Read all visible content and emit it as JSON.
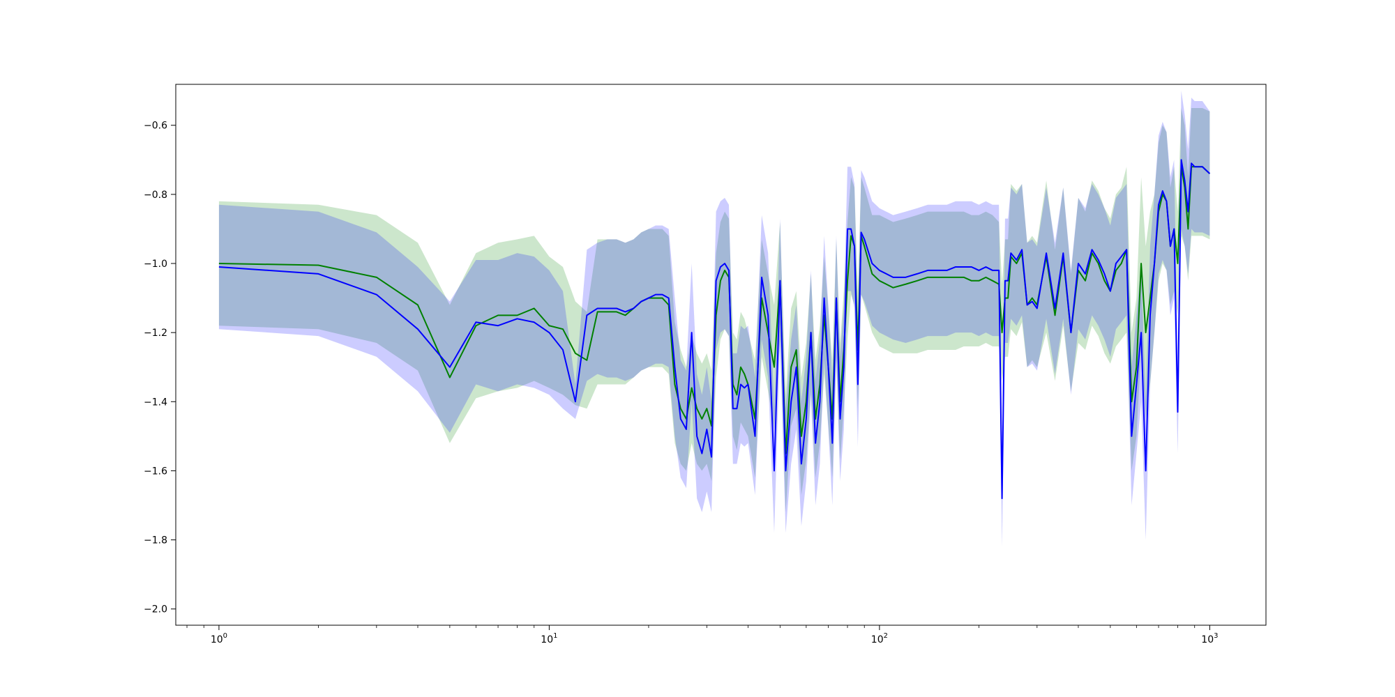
{
  "chart_data": {
    "type": "line",
    "title": "",
    "xlabel": "",
    "ylabel": "",
    "x_scale": "log",
    "xlim": [
      0.74,
      1480
    ],
    "ylim": [
      -2.047,
      -0.4815
    ],
    "grid": false,
    "x_ticks": [
      {
        "value": 1,
        "base": "10",
        "exp": "0"
      },
      {
        "value": 10,
        "base": "10",
        "exp": "1"
      },
      {
        "value": 100,
        "base": "10",
        "exp": "2"
      },
      {
        "value": 1000,
        "base": "10",
        "exp": "3"
      }
    ],
    "y_ticks": [
      {
        "value": -0.6,
        "label": "−0.6"
      },
      {
        "value": -0.8,
        "label": "−0.8"
      },
      {
        "value": -1.0,
        "label": "−1.0"
      },
      {
        "value": -1.2,
        "label": "−1.2"
      },
      {
        "value": -1.4,
        "label": "−1.4"
      },
      {
        "value": -1.6,
        "label": "−1.6"
      },
      {
        "value": -1.8,
        "label": "−1.8"
      },
      {
        "value": -2.0,
        "label": "−2.0"
      }
    ],
    "series": [
      {
        "color": "#008000",
        "band_color": "#008000",
        "x": [
          1,
          2,
          3,
          4,
          5,
          6,
          7,
          8,
          9,
          10,
          11,
          12,
          13,
          14,
          15,
          16,
          17,
          18,
          19,
          20,
          21,
          22,
          23,
          24,
          25,
          26,
          27,
          28,
          29,
          30,
          31,
          32,
          33,
          34,
          35,
          36,
          37,
          38,
          39,
          40,
          42,
          44,
          46,
          48,
          50,
          52,
          54,
          56,
          58,
          60,
          62,
          64,
          66,
          68,
          70,
          72,
          74,
          76,
          78,
          80,
          82,
          84,
          86,
          88,
          90,
          95,
          100,
          110,
          120,
          130,
          140,
          150,
          160,
          170,
          180,
          190,
          200,
          210,
          220,
          230,
          235,
          240,
          245,
          250,
          260,
          270,
          280,
          290,
          300,
          320,
          340,
          360,
          380,
          400,
          420,
          440,
          460,
          480,
          500,
          520,
          540,
          560,
          580,
          600,
          620,
          640,
          660,
          680,
          700,
          720,
          740,
          760,
          780,
          800,
          820,
          840,
          860,
          880,
          900,
          950,
          1000
        ],
        "y": [
          -1.0,
          -1.005,
          -1.04,
          -1.12,
          -1.33,
          -1.18,
          -1.15,
          -1.15,
          -1.13,
          -1.18,
          -1.19,
          -1.26,
          -1.28,
          -1.14,
          -1.14,
          -1.14,
          -1.15,
          -1.13,
          -1.11,
          -1.1,
          -1.1,
          -1.1,
          -1.12,
          -1.35,
          -1.42,
          -1.45,
          -1.36,
          -1.42,
          -1.45,
          -1.42,
          -1.47,
          -1.15,
          -1.05,
          -1.02,
          -1.04,
          -1.35,
          -1.38,
          -1.3,
          -1.32,
          -1.35,
          -1.45,
          -1.1,
          -1.2,
          -1.3,
          -1.05,
          -1.55,
          -1.3,
          -1.25,
          -1.5,
          -1.4,
          -1.2,
          -1.45,
          -1.35,
          -1.15,
          -1.3,
          -1.45,
          -1.1,
          -1.4,
          -1.25,
          -1.05,
          -0.92,
          -0.95,
          -1.25,
          -0.92,
          -0.95,
          -1.03,
          -1.05,
          -1.07,
          -1.06,
          -1.05,
          -1.04,
          -1.04,
          -1.04,
          -1.04,
          -1.04,
          -1.05,
          -1.05,
          -1.04,
          -1.05,
          -1.06,
          -1.2,
          -1.1,
          -1.1,
          -0.98,
          -1.0,
          -0.97,
          -1.12,
          -1.1,
          -1.12,
          -0.98,
          -1.15,
          -0.98,
          -1.2,
          -1.02,
          -1.05,
          -0.97,
          -1.0,
          -1.05,
          -1.08,
          -1.02,
          -1.0,
          -0.96,
          -1.4,
          -1.3,
          -1.0,
          -1.2,
          -1.1,
          -1.0,
          -0.85,
          -0.8,
          -0.82,
          -0.95,
          -0.9,
          -1.0,
          -0.72,
          -0.78,
          -0.9,
          -0.72,
          -0.72,
          -0.72,
          -0.74
        ],
        "lower": [
          -1.18,
          -1.19,
          -1.23,
          -1.31,
          -1.52,
          -1.39,
          -1.37,
          -1.36,
          -1.34,
          -1.36,
          -1.38,
          -1.41,
          -1.42,
          -1.35,
          -1.35,
          -1.35,
          -1.35,
          -1.33,
          -1.31,
          -1.3,
          -1.3,
          -1.3,
          -1.32,
          -1.52,
          -1.58,
          -1.6,
          -1.52,
          -1.58,
          -1.6,
          -1.58,
          -1.63,
          -1.33,
          -1.22,
          -1.19,
          -1.21,
          -1.5,
          -1.54,
          -1.46,
          -1.48,
          -1.5,
          -1.62,
          -1.27,
          -1.37,
          -1.48,
          -1.22,
          -1.72,
          -1.47,
          -1.42,
          -1.67,
          -1.57,
          -1.37,
          -1.62,
          -1.52,
          -1.32,
          -1.47,
          -1.62,
          -1.27,
          -1.57,
          -1.42,
          -1.22,
          -1.09,
          -1.12,
          -1.42,
          -1.09,
          -1.12,
          -1.2,
          -1.24,
          -1.26,
          -1.26,
          -1.26,
          -1.25,
          -1.25,
          -1.25,
          -1.25,
          -1.24,
          -1.24,
          -1.24,
          -1.23,
          -1.24,
          -1.24,
          -1.34,
          -1.27,
          -1.27,
          -1.19,
          -1.21,
          -1.17,
          -1.3,
          -1.28,
          -1.3,
          -1.2,
          -1.34,
          -1.18,
          -1.37,
          -1.23,
          -1.25,
          -1.18,
          -1.21,
          -1.26,
          -1.29,
          -1.24,
          -1.22,
          -1.2,
          -1.6,
          -1.5,
          -1.25,
          -1.45,
          -1.35,
          -1.2,
          -1.05,
          -1.0,
          -1.02,
          -1.12,
          -1.08,
          -1.15,
          -0.92,
          -0.95,
          -1.05,
          -0.92,
          -0.92,
          -0.92,
          -0.93
        ],
        "upper": [
          -0.82,
          -0.83,
          -0.86,
          -0.94,
          -1.12,
          -0.97,
          -0.94,
          -0.93,
          -0.92,
          -0.98,
          -1.01,
          -1.11,
          -1.14,
          -0.93,
          -0.93,
          -0.93,
          -0.94,
          -0.93,
          -0.91,
          -0.9,
          -0.9,
          -0.9,
          -0.92,
          -1.17,
          -1.25,
          -1.3,
          -1.21,
          -1.26,
          -1.29,
          -1.26,
          -1.31,
          -0.97,
          -0.88,
          -0.85,
          -0.87,
          -1.2,
          -1.22,
          -1.14,
          -1.16,
          -1.2,
          -1.28,
          -0.93,
          -1.03,
          -1.12,
          -0.88,
          -1.38,
          -1.13,
          -1.08,
          -1.33,
          -1.23,
          -1.03,
          -1.28,
          -1.18,
          -0.98,
          -1.13,
          -1.28,
          -0.93,
          -1.23,
          -1.08,
          -0.88,
          -0.75,
          -0.78,
          -1.08,
          -0.75,
          -0.78,
          -0.86,
          -0.86,
          -0.88,
          -0.87,
          -0.86,
          -0.85,
          -0.85,
          -0.85,
          -0.85,
          -0.85,
          -0.86,
          -0.86,
          -0.85,
          -0.86,
          -0.88,
          -1.06,
          -0.93,
          -0.93,
          -0.77,
          -0.79,
          -0.77,
          -0.94,
          -0.92,
          -0.94,
          -0.76,
          -0.96,
          -0.78,
          -1.03,
          -0.81,
          -0.85,
          -0.76,
          -0.79,
          -0.84,
          -0.87,
          -0.8,
          -0.78,
          -0.72,
          -1.2,
          -1.1,
          -0.75,
          -0.95,
          -0.85,
          -0.8,
          -0.65,
          -0.6,
          -0.62,
          -0.78,
          -0.72,
          -0.85,
          -0.55,
          -0.6,
          -0.75,
          -0.55,
          -0.55,
          -0.55,
          -0.56
        ]
      },
      {
        "color": "#0000ff",
        "band_color": "#0000ff",
        "x": [
          1,
          2,
          3,
          4,
          5,
          6,
          7,
          8,
          9,
          10,
          11,
          12,
          13,
          14,
          15,
          16,
          17,
          18,
          19,
          20,
          21,
          22,
          23,
          24,
          25,
          26,
          27,
          28,
          29,
          30,
          31,
          32,
          33,
          34,
          35,
          36,
          37,
          38,
          39,
          40,
          42,
          44,
          46,
          48,
          50,
          52,
          54,
          56,
          58,
          60,
          62,
          64,
          66,
          68,
          70,
          72,
          74,
          76,
          78,
          80,
          82,
          84,
          86,
          88,
          90,
          95,
          100,
          110,
          120,
          130,
          140,
          150,
          160,
          170,
          180,
          190,
          200,
          210,
          220,
          230,
          235,
          240,
          245,
          250,
          260,
          270,
          280,
          290,
          300,
          320,
          340,
          360,
          380,
          400,
          420,
          440,
          460,
          480,
          500,
          520,
          540,
          560,
          580,
          600,
          620,
          640,
          660,
          680,
          700,
          720,
          740,
          760,
          780,
          800,
          820,
          840,
          860,
          880,
          900,
          950,
          1000
        ],
        "y": [
          -1.01,
          -1.03,
          -1.09,
          -1.19,
          -1.3,
          -1.17,
          -1.18,
          -1.16,
          -1.17,
          -1.2,
          -1.25,
          -1.4,
          -1.15,
          -1.13,
          -1.13,
          -1.13,
          -1.14,
          -1.13,
          -1.11,
          -1.1,
          -1.09,
          -1.09,
          -1.1,
          -1.3,
          -1.45,
          -1.48,
          -1.2,
          -1.5,
          -1.55,
          -1.48,
          -1.56,
          -1.05,
          -1.01,
          -1.0,
          -1.02,
          -1.42,
          -1.42,
          -1.35,
          -1.36,
          -1.35,
          -1.5,
          -1.04,
          -1.15,
          -1.6,
          -1.05,
          -1.6,
          -1.4,
          -1.3,
          -1.58,
          -1.45,
          -1.2,
          -1.52,
          -1.4,
          -1.1,
          -1.3,
          -1.52,
          -1.1,
          -1.45,
          -1.3,
          -0.9,
          -0.9,
          -0.95,
          -1.35,
          -0.91,
          -0.93,
          -1.0,
          -1.02,
          -1.04,
          -1.04,
          -1.03,
          -1.02,
          -1.02,
          -1.02,
          -1.01,
          -1.01,
          -1.01,
          -1.02,
          -1.01,
          -1.02,
          -1.02,
          -1.68,
          -1.05,
          -1.05,
          -0.97,
          -0.99,
          -0.96,
          -1.12,
          -1.11,
          -1.13,
          -0.97,
          -1.13,
          -0.97,
          -1.2,
          -1.0,
          -1.03,
          -0.96,
          -0.99,
          -1.03,
          -1.08,
          -1.0,
          -0.98,
          -0.96,
          -1.5,
          -1.35,
          -1.2,
          -1.6,
          -1.15,
          -1.0,
          -0.83,
          -0.79,
          -0.82,
          -0.95,
          -0.9,
          -1.43,
          -0.7,
          -0.76,
          -0.85,
          -0.71,
          -0.72,
          -0.72,
          -0.74
        ],
        "lower": [
          -1.19,
          -1.21,
          -1.27,
          -1.37,
          -1.49,
          -1.35,
          -1.37,
          -1.35,
          -1.36,
          -1.38,
          -1.42,
          -1.45,
          -1.34,
          -1.32,
          -1.33,
          -1.33,
          -1.34,
          -1.33,
          -1.31,
          -1.3,
          -1.29,
          -1.29,
          -1.3,
          -1.5,
          -1.62,
          -1.65,
          -1.4,
          -1.68,
          -1.72,
          -1.66,
          -1.72,
          -1.25,
          -1.2,
          -1.19,
          -1.21,
          -1.58,
          -1.58,
          -1.52,
          -1.53,
          -1.52,
          -1.67,
          -1.22,
          -1.33,
          -1.78,
          -1.23,
          -1.78,
          -1.58,
          -1.48,
          -1.76,
          -1.63,
          -1.38,
          -1.7,
          -1.58,
          -1.28,
          -1.48,
          -1.7,
          -1.28,
          -1.63,
          -1.48,
          -1.08,
          -1.08,
          -1.13,
          -1.53,
          -1.09,
          -1.11,
          -1.18,
          -1.2,
          -1.22,
          -1.23,
          -1.22,
          -1.21,
          -1.21,
          -1.21,
          -1.2,
          -1.2,
          -1.2,
          -1.21,
          -1.2,
          -1.21,
          -1.21,
          -1.82,
          -1.23,
          -1.23,
          -1.16,
          -1.18,
          -1.15,
          -1.3,
          -1.29,
          -1.31,
          -1.16,
          -1.32,
          -1.16,
          -1.38,
          -1.19,
          -1.22,
          -1.15,
          -1.18,
          -1.22,
          -1.27,
          -1.19,
          -1.17,
          -1.15,
          -1.7,
          -1.55,
          -1.4,
          -1.8,
          -1.35,
          -1.2,
          -1.03,
          -0.99,
          -1.02,
          -1.15,
          -1.1,
          -1.55,
          -0.9,
          -0.95,
          -1.03,
          -0.9,
          -0.91,
          -0.91,
          -0.92
        ],
        "upper": [
          -0.83,
          -0.85,
          -0.91,
          -1.01,
          -1.11,
          -0.99,
          -0.99,
          -0.97,
          -0.98,
          -1.02,
          -1.08,
          -1.35,
          -0.96,
          -0.94,
          -0.93,
          -0.93,
          -0.94,
          -0.93,
          -0.91,
          -0.9,
          -0.89,
          -0.89,
          -0.9,
          -1.1,
          -1.28,
          -1.31,
          -1.0,
          -1.32,
          -1.38,
          -1.3,
          -1.4,
          -0.85,
          -0.82,
          -0.81,
          -0.83,
          -1.26,
          -1.26,
          -1.18,
          -1.19,
          -1.18,
          -1.33,
          -0.86,
          -0.97,
          -1.42,
          -0.87,
          -1.42,
          -1.22,
          -1.12,
          -1.4,
          -1.27,
          -1.02,
          -1.34,
          -1.22,
          -0.92,
          -1.12,
          -1.34,
          -0.92,
          -1.27,
          -1.12,
          -0.72,
          -0.72,
          -0.77,
          -1.17,
          -0.73,
          -0.75,
          -0.82,
          -0.84,
          -0.86,
          -0.85,
          -0.84,
          -0.83,
          -0.83,
          -0.83,
          -0.82,
          -0.82,
          -0.82,
          -0.83,
          -0.82,
          -0.83,
          -0.83,
          -1.54,
          -0.87,
          -0.87,
          -0.78,
          -0.8,
          -0.77,
          -0.94,
          -0.93,
          -0.95,
          -0.78,
          -0.94,
          -0.78,
          -1.02,
          -0.81,
          -0.84,
          -0.77,
          -0.8,
          -0.84,
          -0.89,
          -0.81,
          -0.79,
          -0.77,
          -1.3,
          -1.15,
          -1.0,
          -1.4,
          -0.95,
          -0.8,
          -0.63,
          -0.59,
          -0.62,
          -0.75,
          -0.7,
          -1.31,
          -0.5,
          -0.57,
          -0.67,
          -0.52,
          -0.53,
          -0.53,
          -0.56
        ]
      }
    ]
  }
}
